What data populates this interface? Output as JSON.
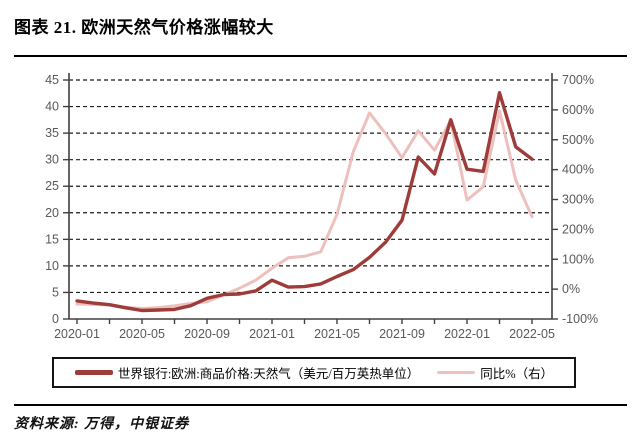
{
  "figure": {
    "title": "图表 21. 欧洲天然气价格涨幅较大",
    "source": "资料来源: 万得，中银证券"
  },
  "legend": {
    "price_label": "世界银行:欧洲:商品价格:天然气（美元/百万英热单位）",
    "yoy_label": "同比%（右）"
  },
  "colors": {
    "price_line": "#9E3C3A",
    "yoy_line": "#EDC0BD",
    "grid": "#1A1A1A",
    "axis": "#404040",
    "tick_label": "#595959"
  },
  "chart_data": {
    "type": "line",
    "title": "图表 21. 欧洲天然气价格涨幅较大",
    "x": [
      "2020-01",
      "2020-02",
      "2020-03",
      "2020-04",
      "2020-05",
      "2020-06",
      "2020-07",
      "2020-08",
      "2020-09",
      "2020-10",
      "2020-11",
      "2020-12",
      "2021-01",
      "2021-02",
      "2021-03",
      "2021-04",
      "2021-05",
      "2021-06",
      "2021-07",
      "2021-08",
      "2021-09",
      "2021-10",
      "2021-11",
      "2021-12",
      "2022-01",
      "2022-02",
      "2022-03",
      "2022-04",
      "2022-05"
    ],
    "x_tick_labels": [
      "2020-01",
      "2020-05",
      "2020-09",
      "2021-01",
      "2021-05",
      "2021-09",
      "2022-01",
      "2022-05"
    ],
    "series": [
      {
        "name": "世界银行:欧洲:商品价格:天然气（美元/百万英热单位）",
        "axis": "left",
        "values": [
          3.4,
          3.0,
          2.7,
          2.1,
          1.6,
          1.7,
          1.8,
          2.5,
          3.9,
          4.6,
          4.7,
          5.3,
          7.3,
          6.0,
          6.1,
          6.6,
          8.0,
          9.3,
          11.6,
          14.5,
          18.6,
          30.5,
          27.3,
          37.5,
          28.2,
          27.8,
          42.6,
          32.4,
          30.1
        ]
      },
      {
        "name": "同比%（右）",
        "axis": "right",
        "values": [
          -50,
          -51,
          -53,
          -61,
          -65,
          -62,
          -56,
          -48,
          -42,
          -20,
          3,
          30,
          70,
          105,
          110,
          125,
          250,
          460,
          590,
          520,
          440,
          530,
          465,
          565,
          298,
          343,
          597,
          365,
          242
        ]
      }
    ],
    "left_axis": {
      "min": 0,
      "max": 45,
      "step": 5,
      "tick_labels": [
        "45",
        "40",
        "35",
        "30",
        "25",
        "20",
        "15",
        "10",
        "5",
        "0"
      ]
    },
    "right_axis": {
      "min": -100,
      "max": 700,
      "step": 100,
      "tick_labels": [
        "700%",
        "600%",
        "500%",
        "400%",
        "300%",
        "200%",
        "100%",
        "0%",
        "-100%"
      ]
    },
    "grid": "horizontal-dashed",
    "legend_position": "bottom"
  }
}
